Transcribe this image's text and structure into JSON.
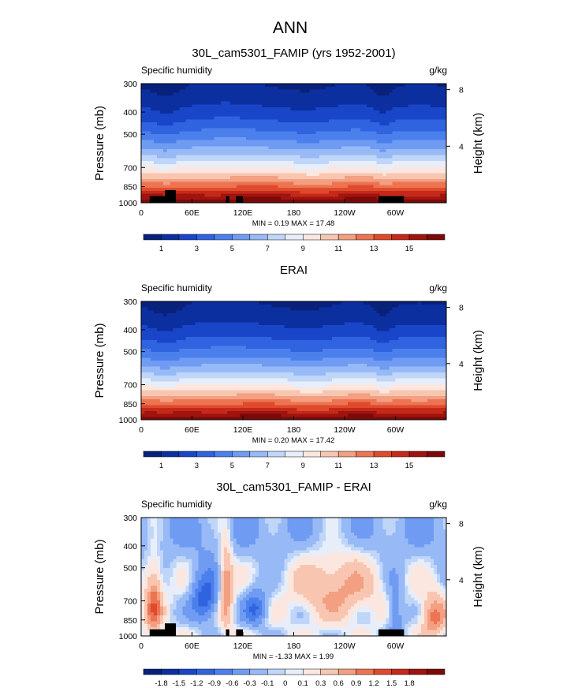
{
  "figure_title": "ANN",
  "colors": {
    "abs_scale": [
      "#08217b",
      "#0c2fa0",
      "#1946c8",
      "#3063e0",
      "#4b7fec",
      "#6f9cf2",
      "#97b9f6",
      "#c0d6f8",
      "#e7eefa",
      "#fbe7df",
      "#f8c6b0",
      "#f39f81",
      "#ec7452",
      "#df4a2c",
      "#c5291a",
      "#a0140f",
      "#7a0a0a"
    ],
    "diff_scale": [
      "#08217b",
      "#0c2fa0",
      "#1946c8",
      "#3063e0",
      "#4b7fec",
      "#6f9cf2",
      "#97b9f6",
      "#c0d6f8",
      "#e7eefa",
      "#fbe7df",
      "#f8c6b0",
      "#f39f81",
      "#ec7452",
      "#df4a2c",
      "#c5291a",
      "#a0140f",
      "#7a0a0a"
    ],
    "terrain": "#000000"
  },
  "chart_data": [
    {
      "type": "heatmap",
      "title": "30L_cam5301_FAMIP (yrs 1952-2001)",
      "field_label": "Specific humidity",
      "units": "g/kg",
      "ylabel": "Pressure (mb)",
      "ylabel_right": "Height (km)",
      "x_ticks": [
        "0",
        "60E",
        "120E",
        "180",
        "120W",
        "60W"
      ],
      "x_values": [
        0,
        60,
        120,
        180,
        240,
        300
      ],
      "xlim": [
        0,
        360
      ],
      "y_ticks": [
        "300",
        "400",
        "500",
        "700",
        "850",
        "1000"
      ],
      "y_values": [
        300,
        400,
        500,
        700,
        850,
        1000
      ],
      "ylim": [
        1000,
        300
      ],
      "y_scale": "log",
      "right_ticks": [
        "8",
        "4"
      ],
      "right_values": [
        8,
        4
      ],
      "min_label": "MIN =  0.19  MAX =  17.48",
      "colorbar_labels": [
        "1",
        "3",
        "5",
        "7",
        "9",
        "11",
        "13",
        "15"
      ],
      "colorbar_levels": [
        0,
        1,
        2,
        3,
        4,
        5,
        6,
        7,
        8,
        9,
        10,
        11,
        12,
        13,
        14,
        15,
        16,
        17
      ],
      "terrain": true
    },
    {
      "type": "heatmap",
      "title": "ERAI",
      "field_label": "Specific humidity",
      "units": "g/kg",
      "ylabel": "Pressure (mb)",
      "ylabel_right": "Height (km)",
      "x_ticks": [
        "0",
        "60E",
        "120E",
        "180",
        "120W",
        "60W"
      ],
      "x_values": [
        0,
        60,
        120,
        180,
        240,
        300
      ],
      "xlim": [
        0,
        360
      ],
      "y_ticks": [
        "300",
        "400",
        "500",
        "700",
        "850",
        "1000"
      ],
      "y_values": [
        300,
        400,
        500,
        700,
        850,
        1000
      ],
      "ylim": [
        1000,
        300
      ],
      "y_scale": "log",
      "right_ticks": [
        "8",
        "4"
      ],
      "right_values": [
        8,
        4
      ],
      "min_label": "MIN =  0.20  MAX =  17.42",
      "colorbar_labels": [
        "1",
        "3",
        "5",
        "7",
        "9",
        "11",
        "13",
        "15"
      ],
      "colorbar_levels": [
        0,
        1,
        2,
        3,
        4,
        5,
        6,
        7,
        8,
        9,
        10,
        11,
        12,
        13,
        14,
        15,
        16,
        17
      ],
      "terrain": false
    },
    {
      "type": "heatmap",
      "title": "30L_cam5301_FAMIP - ERAI",
      "field_label": "Specific humidity",
      "units": "g/kg",
      "ylabel": "Pressure (mb)",
      "ylabel_right": "Height (km)",
      "x_ticks": [
        "0",
        "60E",
        "120E",
        "180",
        "120W",
        "60W"
      ],
      "x_values": [
        0,
        60,
        120,
        180,
        240,
        300
      ],
      "xlim": [
        0,
        360
      ],
      "y_ticks": [
        "300",
        "400",
        "500",
        "700",
        "850",
        "1000"
      ],
      "y_values": [
        300,
        400,
        500,
        700,
        850,
        1000
      ],
      "ylim": [
        1000,
        300
      ],
      "y_scale": "log",
      "right_ticks": [
        "8",
        "4"
      ],
      "right_values": [
        8,
        4
      ],
      "min_label": "MIN = -1.33  MAX =  1.99",
      "colorbar_labels": [
        "-1.8",
        "-1.5",
        "-1.2",
        "-0.9",
        "-0.6",
        "-0.3",
        "-0.1",
        "0",
        "0.1",
        "0.3",
        "0.6",
        "0.9",
        "1.2",
        "1.5",
        "1.8"
      ],
      "colorbar_levels": [
        -1.8,
        -1.5,
        -1.2,
        -0.9,
        -0.6,
        -0.3,
        -0.1,
        0,
        0.1,
        0.3,
        0.6,
        0.9,
        1.2,
        1.5,
        1.8
      ],
      "terrain": true
    }
  ]
}
